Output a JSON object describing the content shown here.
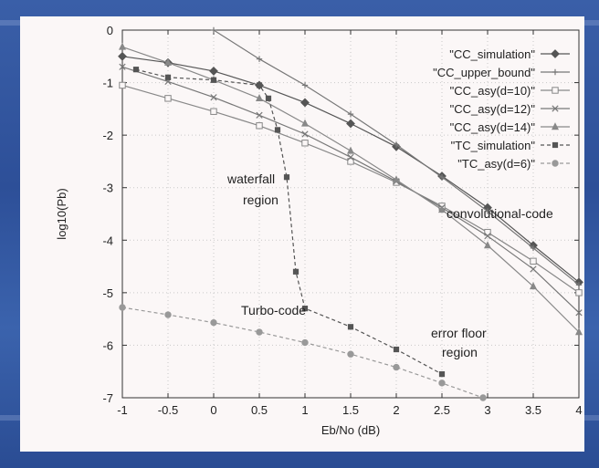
{
  "chart_data": {
    "type": "line",
    "xlabel": "Eb/No (dB)",
    "ylabel": "log10(Pb)",
    "xlim": [
      -1,
      4
    ],
    "ylim": [
      -7,
      0
    ],
    "xticks": [
      "-1",
      "-0.5",
      "0",
      "0.5",
      "1",
      "1.5",
      "2",
      "2.5",
      "3",
      "3.5",
      "4"
    ],
    "yticks": [
      "0",
      "-1",
      "-2",
      "-3",
      "-4",
      "-5",
      "-6",
      "-7"
    ],
    "grid": true,
    "legend_position": "top-right",
    "series": [
      {
        "name": "\"CC_simulation\"",
        "color": "#555555",
        "dash": "",
        "marker": "diamond",
        "x": [
          -1,
          -0.5,
          0,
          0.5,
          1,
          1.5,
          2,
          2.5,
          3,
          3.5,
          4
        ],
        "y": [
          -0.5,
          -0.62,
          -0.78,
          -1.05,
          -1.38,
          -1.78,
          -2.22,
          -2.78,
          -3.38,
          -4.1,
          -4.8
        ]
      },
      {
        "name": "\"CC_upper_bound\"",
        "color": "#777777",
        "dash": "",
        "marker": "plus",
        "x": [
          0,
          0.5,
          1,
          1.5,
          2,
          2.5,
          3,
          3.5,
          4
        ],
        "y": [
          0,
          -0.55,
          -1.05,
          -1.6,
          -2.18,
          -2.8,
          -3.45,
          -4.15,
          -4.85
        ]
      },
      {
        "name": "\"CC_asy(d=10)\"",
        "color": "#888888",
        "dash": "",
        "marker": "square",
        "x": [
          -1,
          -0.5,
          0,
          0.5,
          1,
          1.5,
          2,
          2.5,
          3,
          3.5,
          4
        ],
        "y": [
          -1.05,
          -1.3,
          -1.55,
          -1.82,
          -2.15,
          -2.5,
          -2.9,
          -3.35,
          -3.85,
          -4.4,
          -5.0
        ]
      },
      {
        "name": "\"CC_asy(d=12)\"",
        "color": "#777777",
        "dash": "",
        "marker": "cross",
        "x": [
          -1,
          -0.5,
          0,
          0.5,
          1,
          1.5,
          2,
          2.5,
          3,
          3.5,
          4
        ],
        "y": [
          -0.7,
          -0.98,
          -1.28,
          -1.62,
          -1.98,
          -2.42,
          -2.88,
          -3.38,
          -3.92,
          -4.55,
          -5.38
        ]
      },
      {
        "name": "\"CC_asy(d=14)\"",
        "color": "#888888",
        "dash": "",
        "marker": "triangle",
        "x": [
          -1,
          -0.5,
          0,
          0.5,
          1,
          1.5,
          2,
          2.5,
          3,
          3.5,
          4
        ],
        "y": [
          -0.32,
          -0.62,
          -0.95,
          -1.3,
          -1.78,
          -2.3,
          -2.85,
          -3.42,
          -4.1,
          -4.88,
          -5.75
        ]
      },
      {
        "name": "\"TC_simulation\"",
        "color": "#555555",
        "dash": "4,3",
        "marker": "filled-square",
        "x": [
          -0.85,
          -0.5,
          0,
          0.5,
          0.6,
          0.7,
          0.8,
          0.9,
          1.0,
          1.5,
          2.0,
          2.5
        ],
        "y": [
          -0.75,
          -0.9,
          -0.95,
          -1.05,
          -1.3,
          -1.9,
          -2.8,
          -4.6,
          -5.3,
          -5.65,
          -6.08,
          -6.55
        ]
      },
      {
        "name": "\"TC_asy(d=6)\"",
        "color": "#999999",
        "dash": "4,3",
        "marker": "circle",
        "x": [
          -1,
          -0.5,
          0,
          0.5,
          1,
          1.5,
          2,
          2.5,
          2.95
        ],
        "y": [
          -5.28,
          -5.42,
          -5.57,
          -5.75,
          -5.95,
          -6.17,
          -6.42,
          -6.72,
          -7.0
        ]
      }
    ],
    "annotations": [
      {
        "text": "waterfall",
        "x": 0.15,
        "y": -2.92
      },
      {
        "text": "region",
        "x": 0.32,
        "y": -3.32
      },
      {
        "text": "convolutional-code",
        "x": 2.55,
        "y": -3.58
      },
      {
        "text": "Turbo-code",
        "x": 0.3,
        "y": -5.42
      },
      {
        "text": "error floor",
        "x": 2.38,
        "y": -5.85
      },
      {
        "text": "region",
        "x": 2.5,
        "y": -6.22
      }
    ]
  }
}
